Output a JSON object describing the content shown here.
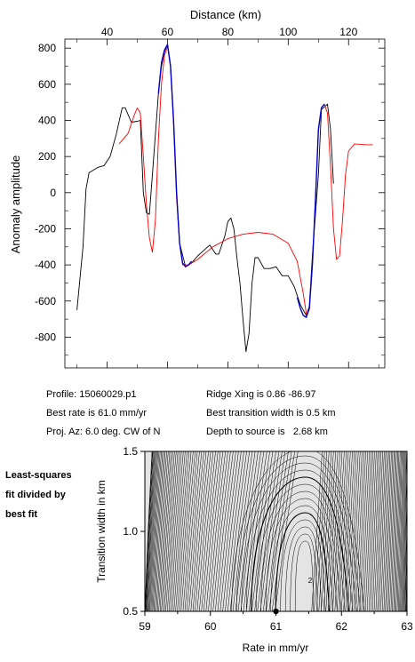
{
  "info": {
    "profile": "Profile: 15060029.p1",
    "best_rate": "Best rate is 61.0 mm/yr",
    "proj_az": "Proj. Az: 6.0 deg. CW of N",
    "ridge_xing": "Ridge Xing is 0.86 -86.97",
    "best_width": "Best transition width is 0.5 km",
    "depth": "Depth to source is   2.68 km"
  },
  "side_label": [
    "Least-squares",
    "fit divided by",
    "best fit"
  ],
  "colors": {
    "observed": "#000000",
    "model": "#ff0000",
    "fit": "#0000cc"
  },
  "chart_data": [
    {
      "type": "line",
      "xlabel": "Distance (km)",
      "ylabel": "Anomaly amplitude",
      "xlim": [
        26,
        132
      ],
      "ylim": [
        -970,
        850
      ],
      "xticks": [
        40,
        60,
        80,
        100,
        120
      ],
      "yticks": [
        800,
        600,
        400,
        200,
        0,
        -200,
        -400,
        -600,
        -800
      ],
      "series": [
        {
          "id": "observed",
          "color": "#000000",
          "points": [
            [
              30,
              -650
            ],
            [
              32,
              -300
            ],
            [
              33,
              20
            ],
            [
              34,
              110
            ],
            [
              37,
              140
            ],
            [
              39,
              150
            ],
            [
              41,
              200
            ],
            [
              43,
              320
            ],
            [
              45,
              470
            ],
            [
              46,
              470
            ],
            [
              48,
              390
            ],
            [
              50,
              395
            ],
            [
              51,
              400
            ],
            [
              52,
              0
            ],
            [
              53,
              -110
            ],
            [
              54,
              -120
            ],
            [
              55,
              100
            ],
            [
              57,
              550
            ],
            [
              58,
              700
            ],
            [
              59,
              780
            ],
            [
              60,
              820
            ],
            [
              61,
              700
            ],
            [
              62,
              400
            ],
            [
              63,
              0
            ],
            [
              64,
              -280
            ],
            [
              66,
              -410
            ],
            [
              68,
              -390
            ],
            [
              70,
              -350
            ],
            [
              72,
              -320
            ],
            [
              74,
              -290
            ],
            [
              76,
              -340
            ],
            [
              77,
              -340
            ],
            [
              79,
              -240
            ],
            [
              80,
              -160
            ],
            [
              81,
              -140
            ],
            [
              82,
              -200
            ],
            [
              83,
              -360
            ],
            [
              84,
              -500
            ],
            [
              85,
              -700
            ],
            [
              86,
              -880
            ],
            [
              87,
              -780
            ],
            [
              88,
              -500
            ],
            [
              89,
              -360
            ],
            [
              90,
              -360
            ],
            [
              92,
              -420
            ],
            [
              94,
              -420
            ],
            [
              96,
              -410
            ],
            [
              98,
              -460
            ],
            [
              100,
              -460
            ],
            [
              102,
              -520
            ],
            [
              104,
              -620
            ],
            [
              106,
              -680
            ],
            [
              107,
              -630
            ],
            [
              108,
              -350
            ],
            [
              110,
              100
            ],
            [
              111,
              460
            ],
            [
              113,
              490
            ],
            [
              114,
              350
            ],
            [
              115,
              50
            ]
          ]
        },
        {
          "id": "model",
          "color": "#ff0000",
          "points": [
            [
              44,
              270
            ],
            [
              47,
              330
            ],
            [
              49,
              430
            ],
            [
              50,
              470
            ],
            [
              51,
              440
            ],
            [
              52,
              200
            ],
            [
              53,
              -60
            ],
            [
              54,
              -250
            ],
            [
              55,
              -330
            ],
            [
              56,
              -150
            ],
            [
              57,
              300
            ],
            [
              58,
              600
            ],
            [
              59,
              760
            ],
            [
              60,
              810
            ],
            [
              61,
              700
            ],
            [
              62,
              380
            ],
            [
              63,
              -30
            ],
            [
              64,
              -280
            ],
            [
              65,
              -400
            ],
            [
              67,
              -400
            ],
            [
              70,
              -370
            ],
            [
              75,
              -300
            ],
            [
              80,
              -255
            ],
            [
              85,
              -230
            ],
            [
              90,
              -220
            ],
            [
              95,
              -230
            ],
            [
              100,
              -280
            ],
            [
              103,
              -380
            ],
            [
              105,
              -560
            ],
            [
              106,
              -670
            ],
            [
              107,
              -650
            ],
            [
              108,
              -400
            ],
            [
              109,
              -50
            ],
            [
              110,
              350
            ],
            [
              111,
              470
            ],
            [
              112,
              490
            ],
            [
              113,
              440
            ],
            [
              114,
              150
            ],
            [
              115,
              -200
            ],
            [
              116,
              -370
            ],
            [
              117,
              -350
            ],
            [
              118,
              -150
            ],
            [
              119,
              100
            ],
            [
              120,
              230
            ],
            [
              122,
              270
            ],
            [
              126,
              265
            ],
            [
              128,
              265
            ]
          ]
        },
        {
          "id": "fit",
          "color": "#0000cc",
          "points": [
            [
              57,
              550
            ],
            [
              58,
              720
            ],
            [
              59,
              790
            ],
            [
              60,
              820
            ],
            [
              61,
              700
            ],
            [
              62,
              400
            ],
            [
              63,
              0
            ],
            [
              64,
              -280
            ],
            [
              65,
              -390
            ],
            [
              66,
              -410
            ],
            [
              67,
              -400
            ],
            [
              68,
              -380
            ]
          ]
        },
        {
          "id": "fit2",
          "color": "#0000cc",
          "points": [
            [
              103,
              -580
            ],
            [
              104,
              -640
            ],
            [
              105,
              -680
            ],
            [
              106,
              -690
            ],
            [
              107,
              -640
            ],
            [
              108,
              -400
            ],
            [
              109,
              -50
            ],
            [
              110,
              350
            ],
            [
              111,
              470
            ],
            [
              112,
              490
            ]
          ]
        }
      ]
    },
    {
      "type": "contour",
      "xlabel": "Rate in mm/yr",
      "ylabel": "Transition width in km",
      "xlim": [
        59,
        63
      ],
      "ylim": [
        0.5,
        1.5
      ],
      "xticks": [
        59,
        60,
        61,
        62,
        63
      ],
      "yticks": [
        0.5,
        1.0,
        1.5
      ],
      "best_fit": {
        "rate": 61.0,
        "width": 0.5
      },
      "contour_label": "2"
    }
  ]
}
